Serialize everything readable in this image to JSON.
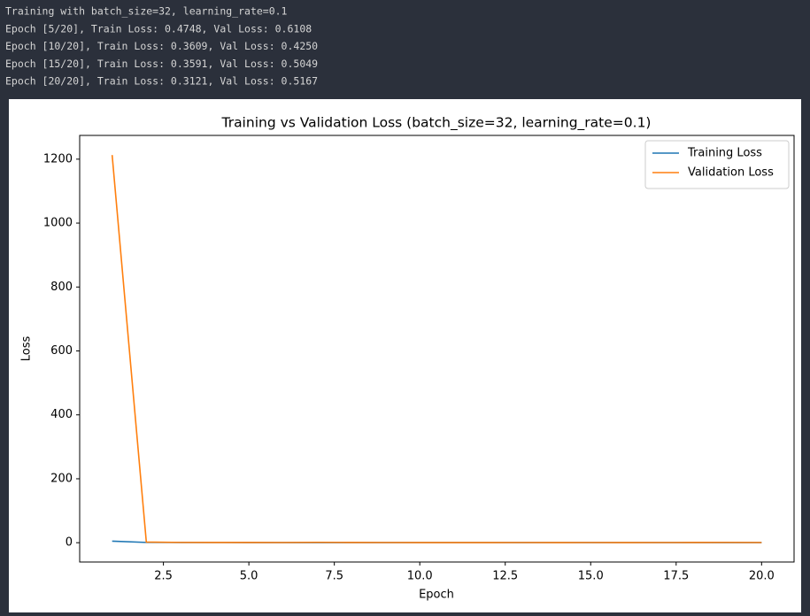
{
  "console": [
    "Training with batch_size=32, learning_rate=0.1",
    "Epoch [5/20], Train Loss: 0.4748, Val Loss: 0.6108",
    "Epoch [10/20], Train Loss: 0.3609, Val Loss: 0.4250",
    "Epoch [15/20], Train Loss: 0.3591, Val Loss: 0.5049",
    "Epoch [20/20], Train Loss: 0.3121, Val Loss: 0.5167"
  ],
  "chart_data": {
    "type": "line",
    "title": "Training vs Validation Loss (batch_size=32, learning_rate=0.1)",
    "x_label": "Epoch",
    "y_label": "Loss",
    "x": [
      1,
      2,
      3,
      4,
      5,
      6,
      7,
      8,
      9,
      10,
      11,
      12,
      13,
      14,
      15,
      16,
      17,
      18,
      19,
      20
    ],
    "series": [
      {
        "name": "Training Loss",
        "color": "#1f77b4",
        "values": [
          4.8,
          0.9,
          0.6,
          0.52,
          0.4748,
          0.44,
          0.42,
          0.41,
          0.39,
          0.3609,
          0.37,
          0.36,
          0.35,
          0.36,
          0.3591,
          0.34,
          0.33,
          0.33,
          0.32,
          0.3121
        ]
      },
      {
        "name": "Validation Loss",
        "color": "#ff7f0e",
        "values": [
          1213,
          2.1,
          0.9,
          0.7,
          0.6108,
          0.55,
          1.2,
          0.6,
          0.5,
          0.425,
          0.48,
          0.45,
          0.5,
          0.47,
          0.5049,
          0.46,
          0.5,
          0.6,
          0.9,
          0.5167
        ]
      }
    ],
    "xlim": [
      0.05,
      20.95
    ],
    "ylim": [
      -60.4,
      1274.3
    ],
    "xticks": [
      2.5,
      {
        "value": 5,
        "label": "5.0"
      },
      7.5,
      {
        "value": 10,
        "label": "10.0"
      },
      12.5,
      {
        "value": 15,
        "label": "15.0"
      },
      17.5,
      {
        "value": 20,
        "label": "20.0"
      }
    ],
    "yticks": [
      0,
      200,
      400,
      600,
      800,
      1000,
      1200
    ],
    "legend": "upper right",
    "grid": false
  }
}
